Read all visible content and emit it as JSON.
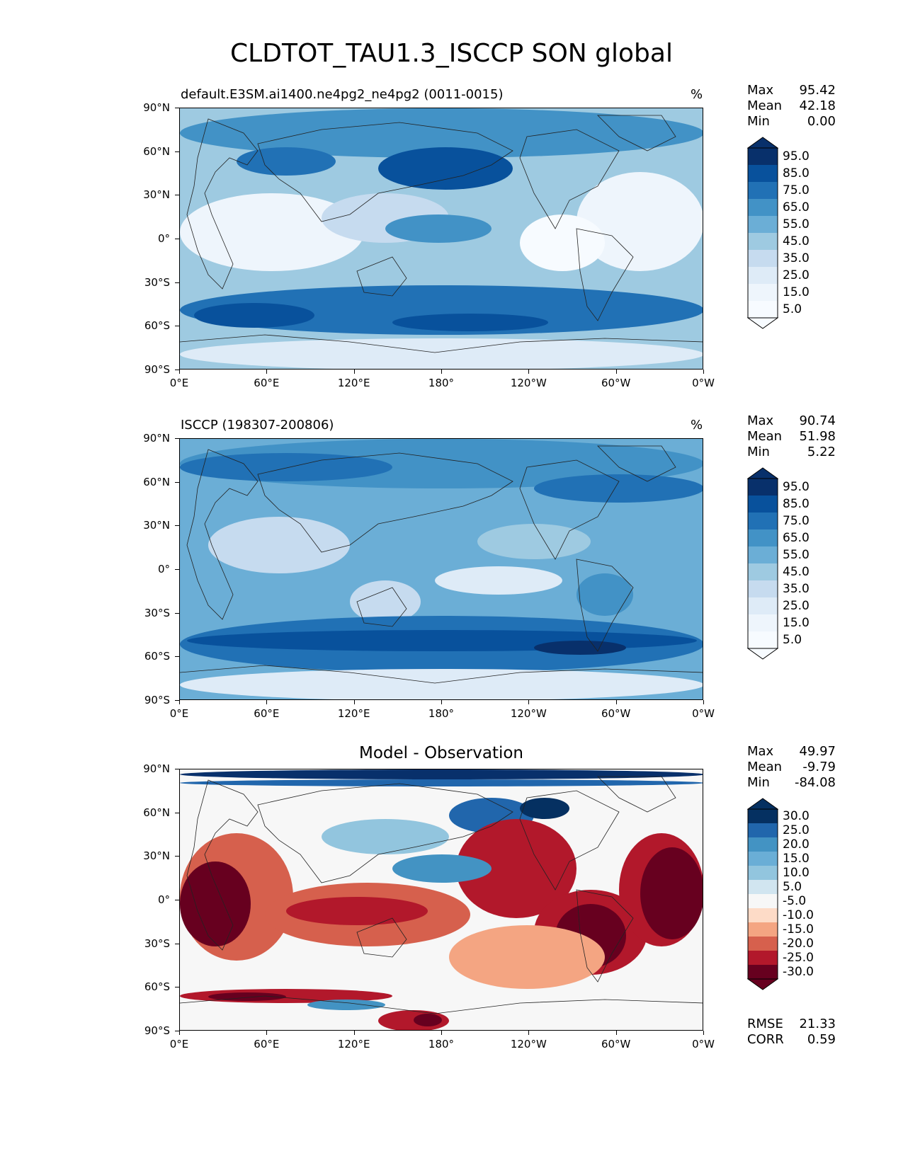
{
  "figure_title": "CLDTOT_TAU1.3_ISCCP SON global",
  "lat_ticks": [
    "90°N",
    "60°N",
    "30°N",
    "0°",
    "30°S",
    "60°S",
    "90°S"
  ],
  "lon_ticks": [
    "0°E",
    "60°E",
    "120°E",
    "180°",
    "120°W",
    "60°W",
    "0°W"
  ],
  "panels": [
    {
      "subtitle_left": "default.E3SM.ai1400.ne4pg2_ne4pg2 (0011-0015)",
      "subtitle_center": "",
      "units": "%",
      "stats": [
        {
          "label": "Max",
          "value": "95.42"
        },
        {
          "label": "Mean",
          "value": "42.18"
        },
        {
          "label": "Min",
          "value": "0.00"
        }
      ],
      "colorbar_labels": [
        "95.0",
        "85.0",
        "75.0",
        "65.0",
        "55.0",
        "45.0",
        "35.0",
        "25.0",
        "15.0",
        "5.0"
      ],
      "colorbar_colors": [
        "#08306b",
        "#08519c",
        "#2171b5",
        "#4292c6",
        "#6baed6",
        "#9ecae1",
        "#c6dbef",
        "#deebf7",
        "#eef5fc",
        "#f7fbff"
      ],
      "extra_stats": []
    },
    {
      "subtitle_left": "ISCCP (198307-200806)",
      "subtitle_center": "",
      "units": "%",
      "stats": [
        {
          "label": "Max",
          "value": "90.74"
        },
        {
          "label": "Mean",
          "value": "51.98"
        },
        {
          "label": "Min",
          "value": "5.22"
        }
      ],
      "colorbar_labels": [
        "95.0",
        "85.0",
        "75.0",
        "65.0",
        "55.0",
        "45.0",
        "35.0",
        "25.0",
        "15.0",
        "5.0"
      ],
      "colorbar_colors": [
        "#08306b",
        "#08519c",
        "#2171b5",
        "#4292c6",
        "#6baed6",
        "#9ecae1",
        "#c6dbef",
        "#deebf7",
        "#eef5fc",
        "#f7fbff"
      ],
      "extra_stats": []
    },
    {
      "subtitle_left": "",
      "subtitle_center": "Model - Observation",
      "units": "",
      "stats": [
        {
          "label": "Max",
          "value": "49.97"
        },
        {
          "label": "Mean",
          "value": "-9.79"
        },
        {
          "label": "Min",
          "value": "-84.08"
        }
      ],
      "colorbar_labels": [
        "30.0",
        "25.0",
        "20.0",
        "15.0",
        "10.0",
        "5.0",
        "-5.0",
        "-10.0",
        "-15.0",
        "-20.0",
        "-25.0",
        "-30.0"
      ],
      "colorbar_colors": [
        "#053061",
        "#2166ac",
        "#4393c3",
        "#6aaed6",
        "#92c5de",
        "#d1e5f0",
        "#f7f7f7",
        "#fddbc7",
        "#f4a582",
        "#d6604d",
        "#b2182b",
        "#67001f"
      ],
      "extra_stats": [
        {
          "label": "RMSE",
          "value": "21.33"
        },
        {
          "label": "CORR",
          "value": "0.59"
        }
      ]
    }
  ]
}
